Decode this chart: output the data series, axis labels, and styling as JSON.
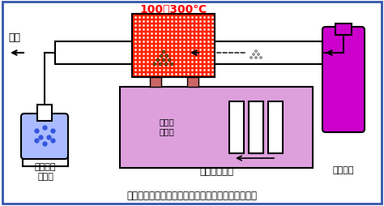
{
  "title": "カールフィッシャー水分測定（水分気化法）の概要",
  "temp_label": "100～300℃",
  "label_haiki": "排気",
  "label_coulometric": "電量滴定\n水分計",
  "label_vaporizer": "水分気化装置",
  "label_nitrogen": "窒素ガス",
  "label_dryer": "乾燥筒\n流量計",
  "border_color": "#3355aa",
  "tube_fill_color": "#cc00cc",
  "heater_fill_color": "#ff2200",
  "vaporizer_fill_color": "#dda0dd",
  "coulometric_fill_color": "#aabbff",
  "background_color": "#ffffff",
  "temp_color": "#ff0000",
  "pipe_color": "#ffffff"
}
